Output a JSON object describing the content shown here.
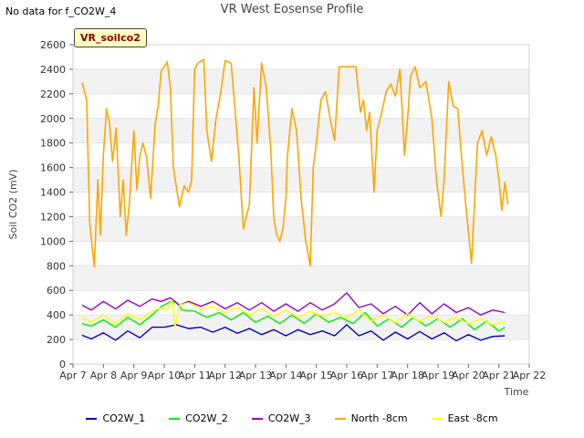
{
  "page": {
    "note": "No data for f_CO2W_4",
    "title": "VR West Eosense Profile",
    "badge": "VR_soilco2"
  },
  "chart_data": {
    "type": "line",
    "title": "VR West Eosense Profile",
    "xlabel": "Time",
    "ylabel": "Soil CO2 (mV)",
    "xlim": [
      7,
      22
    ],
    "ylim": [
      0,
      2600
    ],
    "x_ticks": [
      7,
      8,
      9,
      10,
      11,
      12,
      13,
      14,
      15,
      16,
      17,
      18,
      19,
      20,
      21,
      22
    ],
    "x_tick_labels": [
      "Apr 7",
      "Apr 8",
      "Apr 9",
      "Apr 10",
      "Apr 11",
      "Apr 12",
      "Apr 13",
      "Apr 14",
      "Apr 15",
      "Apr 16",
      "Apr 17",
      "Apr 18",
      "Apr 19",
      "Apr 20",
      "Apr 21",
      "Apr 22"
    ],
    "y_ticks": [
      0,
      200,
      400,
      600,
      800,
      1000,
      1200,
      1400,
      1600,
      1800,
      2000,
      2200,
      2400,
      2600
    ],
    "grid": "horizontal bands",
    "legend": "bottom",
    "series": [
      {
        "name": "CO2W_1",
        "color": "#0000cc",
        "x": [
          7.3,
          7.6,
          8.0,
          8.4,
          8.8,
          9.2,
          9.6,
          10.0,
          10.4,
          10.8,
          11.2,
          11.6,
          12.0,
          12.4,
          12.8,
          13.2,
          13.6,
          14.0,
          14.4,
          14.8,
          15.2,
          15.6,
          16.0,
          16.4,
          16.8,
          17.2,
          17.6,
          18.0,
          18.4,
          18.8,
          19.2,
          19.6,
          20.0,
          20.4,
          20.8,
          21.2
        ],
        "y": [
          235,
          205,
          255,
          195,
          270,
          215,
          300,
          300,
          320,
          290,
          300,
          260,
          300,
          250,
          290,
          240,
          280,
          230,
          280,
          240,
          270,
          230,
          320,
          230,
          270,
          195,
          260,
          205,
          265,
          205,
          255,
          190,
          240,
          195,
          225,
          230
        ]
      },
      {
        "name": "CO2W_2",
        "color": "#00ee00",
        "x": [
          7.3,
          7.6,
          8.0,
          8.4,
          8.8,
          9.2,
          9.6,
          9.9,
          10.0,
          10.2,
          10.4,
          10.6,
          11.0,
          11.4,
          11.8,
          12.2,
          12.6,
          13.0,
          13.4,
          13.8,
          14.2,
          14.6,
          15.0,
          15.4,
          15.8,
          16.2,
          16.6,
          17.0,
          17.4,
          17.8,
          18.2,
          18.6,
          19.0,
          19.4,
          19.8,
          20.2,
          20.6,
          21.0,
          21.2
        ],
        "y": [
          330,
          310,
          360,
          300,
          380,
          320,
          400,
          470,
          480,
          510,
          500,
          440,
          430,
          380,
          420,
          360,
          420,
          340,
          390,
          330,
          400,
          330,
          410,
          340,
          380,
          330,
          420,
          310,
          370,
          300,
          380,
          310,
          370,
          300,
          370,
          280,
          350,
          270,
          300
        ]
      },
      {
        "name": "CO2W_3",
        "color": "#9900cc",
        "x": [
          7.3,
          7.6,
          8.0,
          8.4,
          8.8,
          9.2,
          9.6,
          9.9,
          10.2,
          10.5,
          10.8,
          11.2,
          11.6,
          12.0,
          12.4,
          12.8,
          13.2,
          13.6,
          14.0,
          14.4,
          14.8,
          15.2,
          15.6,
          16.0,
          16.4,
          16.8,
          17.2,
          17.6,
          18.0,
          18.4,
          18.8,
          19.2,
          19.6,
          20.0,
          20.4,
          20.8,
          21.2
        ],
        "y": [
          480,
          440,
          510,
          450,
          520,
          470,
          530,
          510,
          540,
          480,
          510,
          470,
          510,
          450,
          500,
          440,
          500,
          430,
          490,
          430,
          500,
          440,
          490,
          580,
          460,
          490,
          410,
          470,
          400,
          500,
          410,
          490,
          420,
          460,
          400,
          440,
          420
        ]
      },
      {
        "name": "North -8cm",
        "color": "#ffa500",
        "x": [
          7.3,
          7.45,
          7.55,
          7.7,
          7.82,
          7.9,
          8.0,
          8.1,
          8.2,
          8.3,
          8.42,
          8.55,
          8.65,
          8.75,
          8.85,
          9.0,
          9.1,
          9.2,
          9.3,
          9.42,
          9.55,
          9.7,
          9.8,
          9.9,
          10.0,
          10.1,
          10.2,
          10.3,
          10.5,
          10.65,
          10.8,
          10.9,
          11.0,
          11.1,
          11.3,
          11.4,
          11.55,
          11.7,
          11.85,
          12.0,
          12.2,
          12.3,
          12.45,
          12.6,
          12.8,
          12.95,
          13.05,
          13.2,
          13.35,
          13.5,
          13.6,
          13.7,
          13.8,
          13.9,
          14.0,
          14.05,
          14.2,
          14.35,
          14.5,
          14.65,
          14.8,
          14.9,
          15.0,
          15.15,
          15.3,
          15.45,
          15.6,
          15.75,
          15.9,
          16.05,
          16.3,
          16.45,
          16.55,
          16.65,
          16.75,
          16.9,
          17.0,
          17.15,
          17.3,
          17.45,
          17.6,
          17.75,
          17.9,
          18.0,
          18.1,
          18.25,
          18.4,
          18.6,
          18.8,
          18.95,
          19.1,
          19.2,
          19.35,
          19.5,
          19.65,
          19.8,
          19.95,
          20.1,
          20.3,
          20.45,
          20.6,
          20.75,
          20.9,
          21.0,
          21.1,
          21.2,
          21.3
        ],
        "y": [
          2290,
          2150,
          1150,
          790,
          1500,
          1050,
          1700,
          2080,
          1960,
          1650,
          1920,
          1200,
          1500,
          1050,
          1300,
          1900,
          1420,
          1700,
          1800,
          1680,
          1350,
          1950,
          2100,
          2390,
          2420,
          2460,
          2250,
          1600,
          1280,
          1450,
          1400,
          1500,
          2400,
          2450,
          2480,
          1900,
          1650,
          2000,
          2200,
          2470,
          2450,
          2150,
          1700,
          1100,
          1300,
          2250,
          1800,
          2450,
          2260,
          1750,
          1200,
          1050,
          1000,
          1100,
          1350,
          1700,
          2080,
          1900,
          1350,
          1000,
          800,
          1600,
          1800,
          2150,
          2220,
          2000,
          1820,
          2420,
          2420,
          2420,
          2420,
          2050,
          2150,
          1900,
          2050,
          1400,
          1900,
          2050,
          2220,
          2280,
          2180,
          2400,
          1700,
          2000,
          2350,
          2420,
          2250,
          2300,
          2000,
          1500,
          1200,
          1500,
          2300,
          2100,
          2080,
          1600,
          1200,
          820,
          1800,
          1900,
          1700,
          1850,
          1700,
          1500,
          1250,
          1480,
          1300
        ]
      },
      {
        "name": "East -8cm",
        "color": "#ffff00",
        "x": [
          7.3,
          7.6,
          8.0,
          8.4,
          8.8,
          9.2,
          9.6,
          9.9,
          10.1,
          10.25,
          10.35,
          10.5,
          10.8,
          11.2,
          11.6,
          12.0,
          12.4,
          12.8,
          13.2,
          13.6,
          14.0,
          14.4,
          14.8,
          15.2,
          15.6,
          16.0,
          16.4,
          16.8,
          17.2,
          17.6,
          18.0,
          18.4,
          18.8,
          19.2,
          19.6,
          20.0,
          20.4,
          20.8,
          21.2
        ],
        "y": [
          380,
          340,
          400,
          330,
          410,
          360,
          430,
          460,
          440,
          520,
          300,
          480,
          500,
          450,
          470,
          420,
          460,
          400,
          450,
          390,
          440,
          380,
          430,
          390,
          420,
          380,
          440,
          350,
          400,
          340,
          410,
          350,
          400,
          340,
          380,
          330,
          370,
          320,
          350
        ]
      }
    ]
  }
}
